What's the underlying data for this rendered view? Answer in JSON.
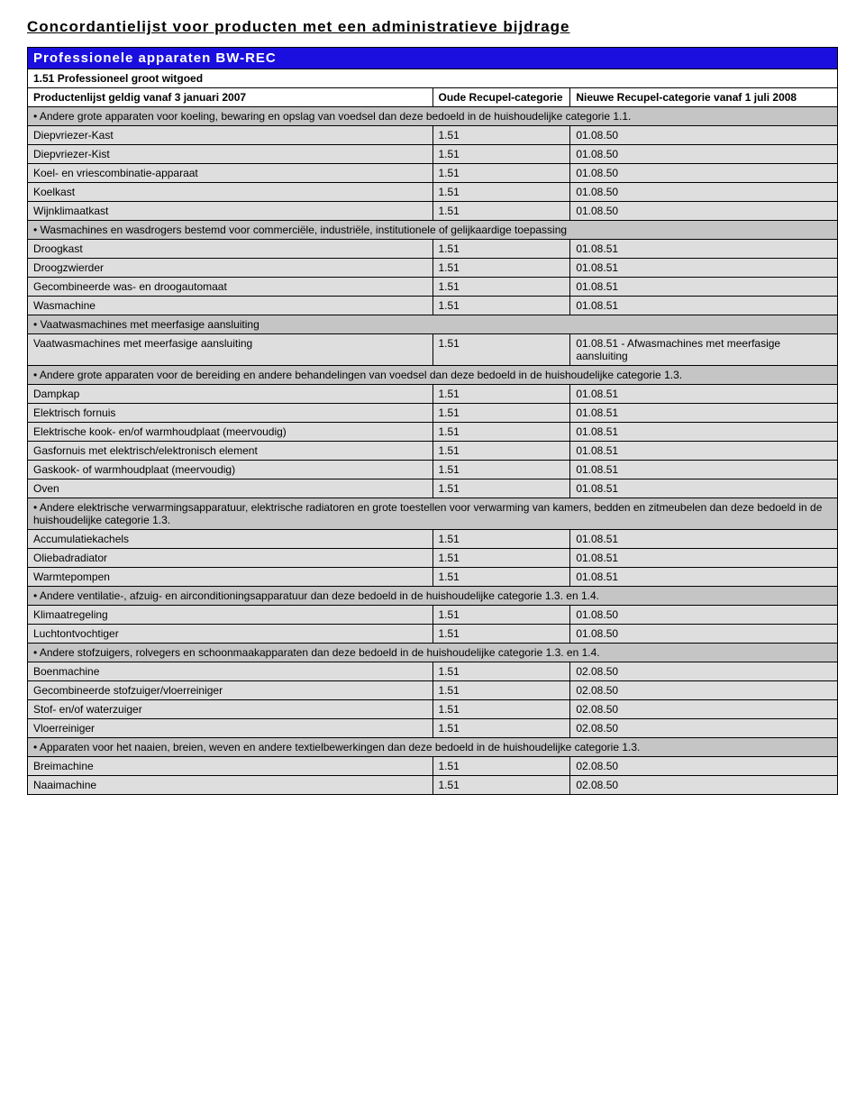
{
  "doc_title": "Concordantielijst voor producten met een administratieve bijdrage",
  "blue_header": "Professionele apparaten BW-REC",
  "subheader": "1.51 Professioneel groot witgoed",
  "columns": {
    "a": "Productenlijst geldig vanaf 3 januari 2007",
    "b": "Oude Recupel-categorie",
    "c": "Nieuwe Recupel-categorie vanaf 1 juli 2008"
  },
  "rows": [
    {
      "type": "section",
      "text": "• Andere grote apparaten voor koeling, bewaring en opslag van voedsel dan deze bedoeld in de huishoudelijke categorie 1.1."
    },
    {
      "type": "data",
      "a": "Diepvriezer-Kast",
      "b": "1.51",
      "c": "01.08.50"
    },
    {
      "type": "data",
      "a": "Diepvriezer-Kist",
      "b": "1.51",
      "c": "01.08.50"
    },
    {
      "type": "data",
      "a": "Koel- en vriescombinatie-apparaat",
      "b": "1.51",
      "c": "01.08.50"
    },
    {
      "type": "data",
      "a": "Koelkast",
      "b": "1.51",
      "c": "01.08.50"
    },
    {
      "type": "data",
      "a": "Wijnklimaatkast",
      "b": "1.51",
      "c": "01.08.50"
    },
    {
      "type": "section",
      "text": "• Wasmachines en wasdrogers bestemd voor commerciële, industriële,  institutionele of gelijkaardige toepassing"
    },
    {
      "type": "data",
      "a": "Droogkast",
      "b": "1.51",
      "c": "01.08.51"
    },
    {
      "type": "data",
      "a": "Droogzwierder",
      "b": "1.51",
      "c": "01.08.51"
    },
    {
      "type": "data",
      "a": "Gecombineerde was- en droogautomaat",
      "b": "1.51",
      "c": "01.08.51"
    },
    {
      "type": "data",
      "a": "Wasmachine",
      "b": "1.51",
      "c": "01.08.51"
    },
    {
      "type": "section",
      "text": "• Vaatwasmachines met meerfasige aansluiting"
    },
    {
      "type": "data",
      "a": "Vaatwasmachines met meerfasige aansluiting",
      "b": "1.51",
      "c": "01.08.51 - Afwasmachines met meerfasige aansluiting"
    },
    {
      "type": "section",
      "text": "• Andere grote apparaten voor de bereiding en andere behandelingen van voedsel dan deze bedoeld in de huishoudelijke categorie 1.3."
    },
    {
      "type": "data",
      "a": "Dampkap",
      "b": "1.51",
      "c": "01.08.51"
    },
    {
      "type": "data",
      "a": "Elektrisch fornuis",
      "b": "1.51",
      "c": "01.08.51"
    },
    {
      "type": "data",
      "a": "Elektrische kook- en/of warmhoudplaat (meervoudig)",
      "b": "1.51",
      "c": "01.08.51"
    },
    {
      "type": "data",
      "a": "Gasfornuis met elektrisch/elektronisch element",
      "b": "1.51",
      "c": "01.08.51"
    },
    {
      "type": "data",
      "a": "Gaskook- of warmhoudplaat (meervoudig)",
      "b": "1.51",
      "c": "01.08.51"
    },
    {
      "type": "data",
      "a": "Oven",
      "b": "1.51",
      "c": "01.08.51"
    },
    {
      "type": "section",
      "text": "• Andere elektrische verwarmingsapparatuur, elektrische radiatoren en grote toestellen voor verwarming van kamers, bedden en zitmeubelen dan deze bedoeld in de huishoudelijke categorie 1.3."
    },
    {
      "type": "data",
      "a": "Accumulatiekachels",
      "b": "1.51",
      "c": "01.08.51"
    },
    {
      "type": "data",
      "a": "Oliebadradiator",
      "b": "1.51",
      "c": "01.08.51"
    },
    {
      "type": "data",
      "a": "Warmtepompen",
      "b": "1.51",
      "c": "01.08.51"
    },
    {
      "type": "section",
      "text": "• Andere ventilatie-, afzuig- en airconditioningsapparatuur dan deze bedoeld in de huishoudelijke categorie 1.3. en 1.4."
    },
    {
      "type": "data",
      "a": "Klimaatregeling",
      "b": "1.51",
      "c": "01.08.50"
    },
    {
      "type": "data",
      "a": "Luchtontvochtiger",
      "b": "1.51",
      "c": "01.08.50"
    },
    {
      "type": "section",
      "text": "• Andere stofzuigers, rolvegers en schoonmaakapparaten dan deze bedoeld in de huishoudelijke categorie 1.3. en 1.4."
    },
    {
      "type": "data",
      "a": "Boenmachine",
      "b": "1.51",
      "c": "02.08.50"
    },
    {
      "type": "data",
      "a": "Gecombineerde stofzuiger/vloerreiniger",
      "b": "1.51",
      "c": "02.08.50"
    },
    {
      "type": "data",
      "a": "Stof- en/of waterzuiger",
      "b": "1.51",
      "c": "02.08.50"
    },
    {
      "type": "data",
      "a": "Vloerreiniger",
      "b": "1.51",
      "c": "02.08.50"
    },
    {
      "type": "section",
      "text": "• Apparaten voor het naaien, breien, weven en andere textielbewerkingen dan deze bedoeld in de huishoudelijke categorie 1.3."
    },
    {
      "type": "data",
      "a": "Breimachine",
      "b": "1.51",
      "c": "02.08.50"
    },
    {
      "type": "data",
      "a": "Naaimachine",
      "b": "1.51",
      "c": "02.08.50"
    }
  ]
}
